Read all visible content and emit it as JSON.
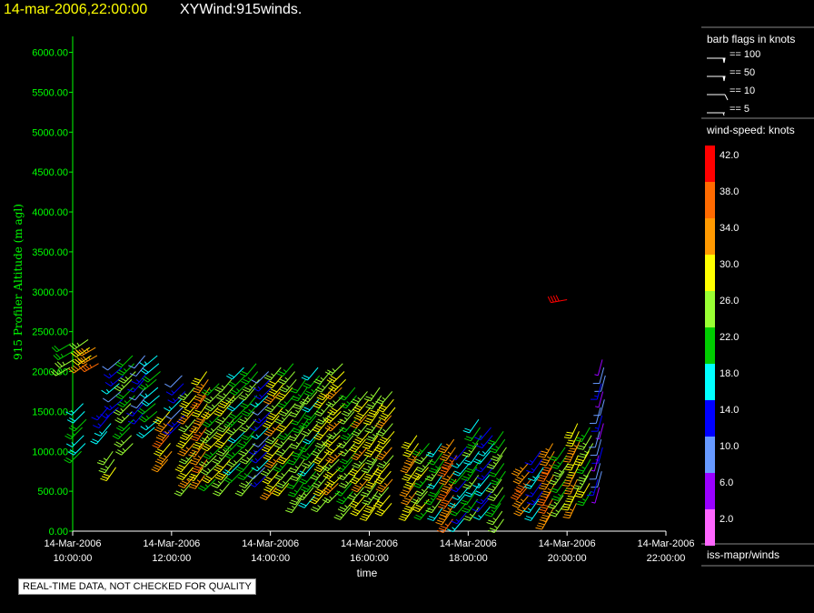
{
  "header": {
    "date_time": "14-mar-2006,22:00:00",
    "product": "XYWind:915winds."
  },
  "notice": "REAL-TIME DATA, NOT CHECKED FOR QUALITY",
  "legend": {
    "barb_title": "barb flags in knots",
    "barbs": [
      "== 100",
      "== 50",
      "== 10",
      "== 5"
    ],
    "speed_title": "wind-speed: knots",
    "speed_scale": [
      {
        "label": "42.0",
        "color": "#ff0000"
      },
      {
        "label": "38.0",
        "color": "#ff6a00"
      },
      {
        "label": "34.0",
        "color": "#ff9900"
      },
      {
        "label": "30.0",
        "color": "#ffff00"
      },
      {
        "label": "26.0",
        "color": "#99ff33"
      },
      {
        "label": "22.0",
        "color": "#00cc00"
      },
      {
        "label": "18.0",
        "color": "#00ffff"
      },
      {
        "label": "14.0",
        "color": "#0000ff"
      },
      {
        "label": "10.0",
        "color": "#6699ff"
      },
      {
        "label": "6.0",
        "color": "#9900ff"
      },
      {
        "label": "2.0",
        "color": "#ff66ff"
      }
    ],
    "source": "iss-mapr/winds"
  },
  "chart_data": {
    "type": "scatter",
    "ylabel": "915 Profiler Altitude (m agl)",
    "xlabel": "time",
    "ylim": [
      0,
      6200
    ],
    "yticks": [
      "0.00",
      "500.00",
      "1000.00",
      "1500.00",
      "2000.00",
      "2500.00",
      "3000.00",
      "3500.00",
      "4000.00",
      "4500.00",
      "5000.00",
      "5500.00",
      "6000.00"
    ],
    "xlim_hours": [
      10,
      22
    ],
    "xticks": [
      {
        "date": "14-Mar-2006",
        "time": "10:00:00"
      },
      {
        "date": "14-Mar-2006",
        "time": "12:00:00"
      },
      {
        "date": "14-Mar-2006",
        "time": "14:00:00"
      },
      {
        "date": "14-Mar-2006",
        "time": "16:00:00"
      },
      {
        "date": "14-Mar-2006",
        "time": "18:00:00"
      },
      {
        "date": "14-Mar-2006",
        "time": "20:00:00"
      },
      {
        "date": "14-Mar-2006",
        "time": "22:00:00"
      }
    ],
    "colors": {
      "axis": "#00ff00",
      "frame": "#ffffff"
    },
    "profiles": [
      {
        "t": 10.0,
        "top": 2350,
        "bot": 2000,
        "spd": 24,
        "dir": 240
      },
      {
        "t": 10.25,
        "top": 1600,
        "bot": 950,
        "spd": 20,
        "dir": 225
      },
      {
        "t": 10.35,
        "top": 2400,
        "bot": 2050,
        "spd": 30,
        "dir": 235
      },
      {
        "t": 10.5,
        "top": 2300,
        "bot": 2050,
        "spd": 36,
        "dir": 240
      },
      {
        "t": 10.75,
        "top": 1550,
        "bot": 1200,
        "spd": 16,
        "dir": 220
      },
      {
        "t": 10.85,
        "top": 1000,
        "bot": 800,
        "spd": 28,
        "dir": 215
      },
      {
        "t": 11.0,
        "top": 2150,
        "bot": 1500,
        "spd": 14,
        "dir": 230
      },
      {
        "t": 11.25,
        "top": 2200,
        "bot": 1100,
        "spd": 24,
        "dir": 225
      },
      {
        "t": 11.5,
        "top": 2200,
        "bot": 1500,
        "spd": 12,
        "dir": 220
      },
      {
        "t": 11.75,
        "top": 2200,
        "bot": 1300,
        "spd": 20,
        "dir": 230
      },
      {
        "t": 12.0,
        "top": 1500,
        "bot": 900,
        "spd": 34,
        "dir": 220
      },
      {
        "t": 12.25,
        "top": 1950,
        "bot": 1300,
        "spd": 14,
        "dir": 225
      },
      {
        "t": 12.5,
        "top": 1800,
        "bot": 600,
        "spd": 30,
        "dir": 220
      },
      {
        "t": 12.75,
        "top": 2000,
        "bot": 700,
        "spd": 34,
        "dir": 215
      },
      {
        "t": 13.0,
        "top": 1850,
        "bot": 650,
        "spd": 26,
        "dir": 225
      },
      {
        "t": 13.25,
        "top": 1900,
        "bot": 600,
        "spd": 28,
        "dir": 220
      },
      {
        "t": 13.5,
        "top": 2050,
        "bot": 700,
        "spd": 22,
        "dir": 225
      },
      {
        "t": 13.75,
        "top": 2100,
        "bot": 600,
        "spd": 24,
        "dir": 220
      },
      {
        "t": 14.0,
        "top": 2000,
        "bot": 650,
        "spd": 14,
        "dir": 225
      },
      {
        "t": 14.25,
        "top": 2050,
        "bot": 500,
        "spd": 30,
        "dir": 220
      },
      {
        "t": 14.5,
        "top": 2100,
        "bot": 550,
        "spd": 26,
        "dir": 220
      },
      {
        "t": 14.75,
        "top": 1900,
        "bot": 400,
        "spd": 24,
        "dir": 215
      },
      {
        "t": 15.0,
        "top": 2050,
        "bot": 450,
        "spd": 22,
        "dir": 220
      },
      {
        "t": 15.25,
        "top": 2000,
        "bot": 350,
        "spd": 28,
        "dir": 220
      },
      {
        "t": 15.5,
        "top": 2100,
        "bot": 450,
        "spd": 30,
        "dir": 225
      },
      {
        "t": 15.75,
        "top": 1800,
        "bot": 300,
        "spd": 24,
        "dir": 220
      },
      {
        "t": 16.0,
        "top": 1750,
        "bot": 300,
        "spd": 30,
        "dir": 220
      },
      {
        "t": 16.25,
        "top": 1800,
        "bot": 300,
        "spd": 28,
        "dir": 215
      },
      {
        "t": 16.5,
        "top": 1750,
        "bot": 300,
        "spd": 30,
        "dir": 220
      },
      {
        "t": 17.0,
        "top": 1200,
        "bot": 250,
        "spd": 32,
        "dir": 215
      },
      {
        "t": 17.25,
        "top": 1100,
        "bot": 250,
        "spd": 26,
        "dir": 220
      },
      {
        "t": 17.5,
        "top": 1100,
        "bot": 250,
        "spd": 22,
        "dir": 215
      },
      {
        "t": 17.75,
        "top": 1150,
        "bot": 150,
        "spd": 36,
        "dir": 215
      },
      {
        "t": 18.0,
        "top": 1050,
        "bot": 150,
        "spd": 18,
        "dir": 220
      },
      {
        "t": 18.25,
        "top": 1400,
        "bot": 250,
        "spd": 22,
        "dir": 215
      },
      {
        "t": 18.5,
        "top": 1300,
        "bot": 250,
        "spd": 16,
        "dir": 220
      },
      {
        "t": 18.75,
        "top": 1250,
        "bot": 150,
        "spd": 24,
        "dir": 215
      },
      {
        "t": 19.25,
        "top": 850,
        "bot": 350,
        "spd": 36,
        "dir": 220
      },
      {
        "t": 19.5,
        "top": 1000,
        "bot": 250,
        "spd": 16,
        "dir": 215
      },
      {
        "t": 19.75,
        "top": 1100,
        "bot": 200,
        "spd": 36,
        "dir": 210
      },
      {
        "t": 20.0,
        "top": 1050,
        "bot": 350,
        "spd": 24,
        "dir": 215
      },
      {
        "t": 20.25,
        "top": 1350,
        "bot": 300,
        "spd": 32,
        "dir": 205
      },
      {
        "t": 20.5,
        "top": 1300,
        "bot": 450,
        "spd": 26,
        "dir": 210
      },
      {
        "t": 20.75,
        "top": 2150,
        "bot": 500,
        "spd": 10,
        "dir": 195
      },
      {
        "t": 20.0,
        "top": 2900,
        "bot": 2900,
        "spd": 42,
        "dir": 260
      }
    ]
  }
}
